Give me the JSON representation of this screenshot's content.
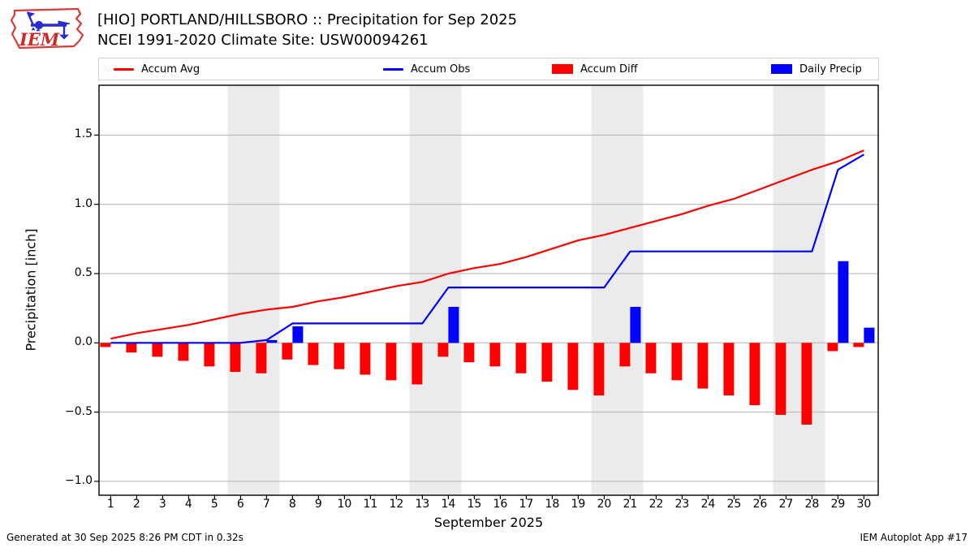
{
  "header": {
    "title_line1": "[HIO] PORTLAND/HILLSBORO :: Precipitation for Sep 2025",
    "title_line2": "NCEI 1991-2020 Climate Site: USW00094261",
    "logo_text": "IEM"
  },
  "legend": {
    "items": [
      {
        "label": "Accum Avg",
        "swatch": "line",
        "color": "#ff0000"
      },
      {
        "label": "Accum Obs",
        "swatch": "line",
        "color": "#0000ff"
      },
      {
        "label": "Accum Diff",
        "swatch": "patch",
        "color": "#ff0000"
      },
      {
        "label": "Daily Precip",
        "swatch": "patch",
        "color": "#0000ff"
      }
    ]
  },
  "chart_data": {
    "type": "mixed line+bar",
    "title": "[HIO] PORTLAND/HILLSBORO :: Precipitation for Sep 2025",
    "subtitle": "NCEI 1991-2020 Climate Site: USW00094261",
    "xlabel": "September 2025",
    "ylabel": "Precipitation [inch]",
    "x": [
      1,
      2,
      3,
      4,
      5,
      6,
      7,
      8,
      9,
      10,
      11,
      12,
      13,
      14,
      15,
      16,
      17,
      18,
      19,
      20,
      21,
      22,
      23,
      24,
      25,
      26,
      27,
      28,
      29,
      30
    ],
    "series": [
      {
        "name": "Accum Avg",
        "type": "line",
        "color": "#ff0000",
        "values": [
          0.03,
          0.07,
          0.1,
          0.13,
          0.17,
          0.21,
          0.24,
          0.26,
          0.3,
          0.33,
          0.37,
          0.41,
          0.44,
          0.5,
          0.54,
          0.57,
          0.62,
          0.68,
          0.74,
          0.78,
          0.83,
          0.88,
          0.93,
          0.99,
          1.04,
          1.11,
          1.18,
          1.25,
          1.31,
          1.39
        ]
      },
      {
        "name": "Accum Obs",
        "type": "line",
        "color": "#0000ff",
        "values": [
          0.0,
          0.0,
          0.0,
          0.0,
          0.0,
          0.0,
          0.02,
          0.14,
          0.14,
          0.14,
          0.14,
          0.14,
          0.14,
          0.4,
          0.4,
          0.4,
          0.4,
          0.4,
          0.4,
          0.4,
          0.66,
          0.66,
          0.66,
          0.66,
          0.66,
          0.66,
          0.66,
          0.66,
          1.25,
          1.36
        ]
      },
      {
        "name": "Accum Diff",
        "type": "bar",
        "color": "#ff0000",
        "align": "left",
        "values": [
          -0.03,
          -0.07,
          -0.1,
          -0.13,
          -0.17,
          -0.21,
          -0.22,
          -0.12,
          -0.16,
          -0.19,
          -0.23,
          -0.27,
          -0.3,
          -0.1,
          -0.14,
          -0.17,
          -0.22,
          -0.28,
          -0.34,
          -0.38,
          -0.17,
          -0.22,
          -0.27,
          -0.33,
          -0.38,
          -0.45,
          -0.52,
          -0.59,
          -0.06,
          -0.03
        ]
      },
      {
        "name": "Daily Precip",
        "type": "bar",
        "color": "#0000ff",
        "align": "right",
        "values": [
          0,
          0,
          0,
          0,
          0,
          0,
          0.02,
          0.12,
          0,
          0,
          0,
          0,
          0,
          0.26,
          0,
          0,
          0,
          0,
          0,
          0,
          0.26,
          0,
          0,
          0,
          0,
          0,
          0,
          0,
          0.59,
          0.11
        ]
      }
    ],
    "xlim": [
      0.55,
      30.55
    ],
    "ylim": [
      -1.1,
      1.86
    ],
    "yticks": [
      -1.0,
      -0.5,
      0.0,
      0.5,
      1.0,
      1.5
    ],
    "ytick_labels": [
      "−1.0",
      "−0.5",
      "0.0",
      "0.5",
      "1.0",
      "1.5"
    ],
    "xticks": [
      1,
      2,
      3,
      4,
      5,
      6,
      7,
      8,
      9,
      10,
      11,
      12,
      13,
      14,
      15,
      16,
      17,
      18,
      19,
      20,
      21,
      22,
      23,
      24,
      25,
      26,
      27,
      28,
      29,
      30
    ],
    "weekend_bands": [
      [
        5.5,
        7.5
      ],
      [
        12.5,
        14.5
      ],
      [
        19.5,
        21.5
      ],
      [
        26.5,
        28.5
      ]
    ],
    "grid": "horizontal gridlines on",
    "legend_position": "top, outside plot",
    "colors": {
      "band": "#ebebeb",
      "grid": "#b2b2b2",
      "frame": "#000000",
      "background": "#ffffff"
    }
  },
  "footer": {
    "left": "Generated at 30 Sep 2025 8:26 PM CDT in 0.32s",
    "right": "IEM Autoplot App #17"
  }
}
